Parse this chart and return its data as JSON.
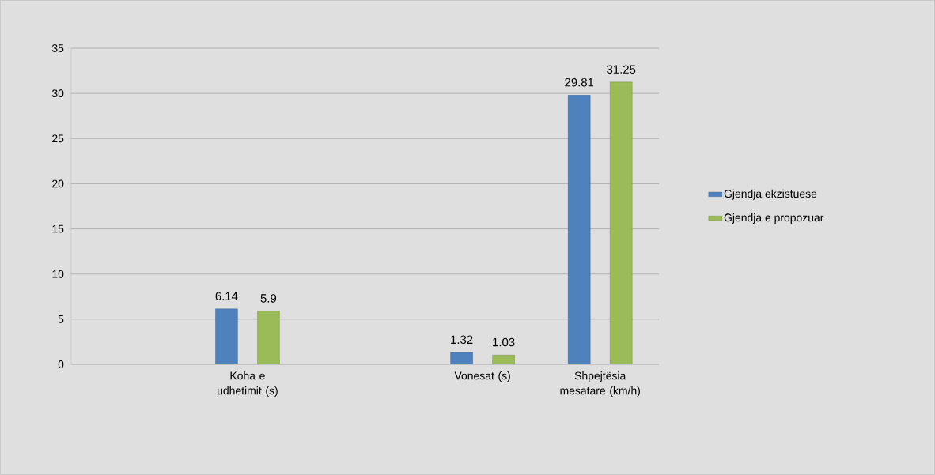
{
  "chart_data": {
    "type": "bar",
    "categories": [
      null,
      "Koha e udhetimit (s)",
      null,
      "Vonesat (s)",
      "Shpejtësia mesatare (km/h)"
    ],
    "series": [
      {
        "name": "Gjendja ekzistuese",
        "color": "#4f81bd",
        "values": [
          null,
          6.14,
          null,
          1.32,
          29.81
        ]
      },
      {
        "name": "Gjendja e propozuar",
        "color": "#9bbb59",
        "values": [
          null,
          5.9,
          null,
          1.03,
          31.25
        ]
      }
    ],
    "ylim": [
      0,
      35
    ],
    "yticks": [
      0,
      5,
      10,
      15,
      20,
      25,
      30,
      35
    ],
    "grid": "y",
    "legend": "right",
    "data_labels": true
  }
}
